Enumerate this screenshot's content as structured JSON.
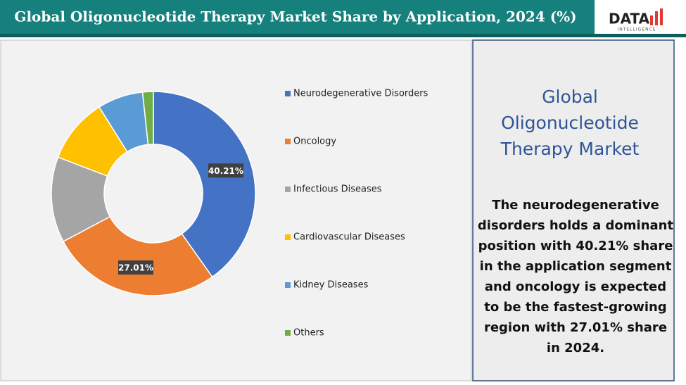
{
  "header": {
    "title": "Global Oligonucleotide Therapy Market Share by Application, 2024 (%)"
  },
  "logo": {
    "brand": "DATA",
    "tagline": "INTELLIGENCE"
  },
  "side_panel": {
    "heading": [
      "Global",
      "Oligonucleotide",
      "Therapy Market"
    ],
    "text": [
      "The neurodegenerative",
      "disorders holds a dominant",
      "position with 40.21% share",
      "in the application segment",
      "and oncology is expected",
      "to be the fastest-growing",
      "region with 27.01% share",
      "in 2024."
    ]
  },
  "chart_data": {
    "type": "donut",
    "categories": [
      "Neurodegenerative Disorders",
      "Oncology",
      "Infectious Diseases",
      "Cardiovascular Diseases",
      "Kidney Diseases",
      "Others"
    ],
    "values": [
      40.21,
      27.01,
      13.58,
      10.3,
      7.2,
      1.7
    ],
    "value_labels": [
      "40.21%",
      "27.01%",
      null,
      null,
      null,
      null
    ],
    "colors": [
      "#4472c4",
      "#ed7d31",
      "#a5a5a5",
      "#ffc000",
      "#5b9bd5",
      "#70ad47"
    ],
    "legend": "right"
  }
}
